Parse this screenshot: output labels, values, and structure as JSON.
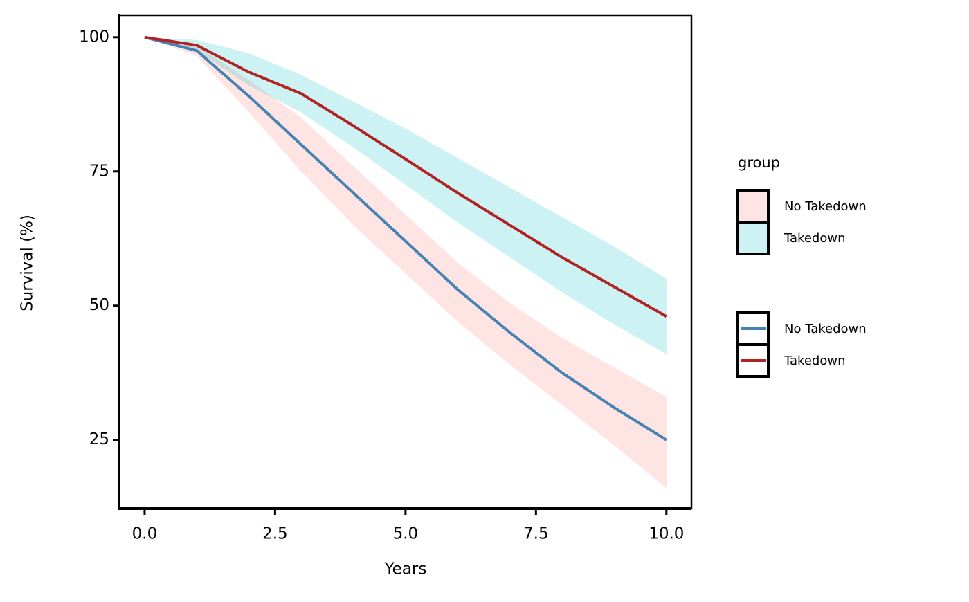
{
  "chart_data": {
    "type": "line",
    "x_label": "Years",
    "y_label": "Survival (%)",
    "x": [
      0,
      1,
      2,
      3,
      4,
      5,
      6,
      7,
      8,
      9,
      10
    ],
    "series": [
      {
        "name": "No Takedown",
        "color": "#4682b4",
        "fill": "#f8766d",
        "values": [
          100,
          97.5,
          89,
          80,
          71,
          62,
          53,
          45,
          37.5,
          31,
          25
        ],
        "upper": [
          100,
          98.5,
          92,
          85,
          76,
          67,
          58,
          50.5,
          44,
          38.5,
          33
        ],
        "lower": [
          100,
          96.5,
          86,
          75,
          65,
          56,
          47,
          39,
          31.5,
          24,
          16
        ]
      },
      {
        "name": "Takedown",
        "color": "#b22222",
        "fill": "#00bfc4",
        "values": [
          100,
          98.5,
          93.5,
          89.5,
          83.5,
          77.3,
          71,
          65,
          59,
          53.5,
          48
        ],
        "upper": [
          100,
          99.5,
          97,
          93,
          88,
          83,
          77.5,
          72,
          66.5,
          61,
          55
        ],
        "lower": [
          100,
          97.5,
          91,
          86,
          79.5,
          72.5,
          65.5,
          59,
          52.5,
          46.5,
          41
        ]
      }
    ],
    "fill_opacity": 0.2,
    "fill_legend_title": "group",
    "xlim": [
      -0.49,
      10.48
    ],
    "xticks": [
      {
        "value": 0,
        "label": "0.0"
      },
      2.5,
      {
        "value": 5,
        "label": "5.0"
      },
      7.5,
      {
        "value": 10,
        "label": "10.0"
      }
    ],
    "ylim": [
      12.2,
      104.1
    ],
    "yticks": [
      25,
      50,
      75,
      100
    ]
  }
}
